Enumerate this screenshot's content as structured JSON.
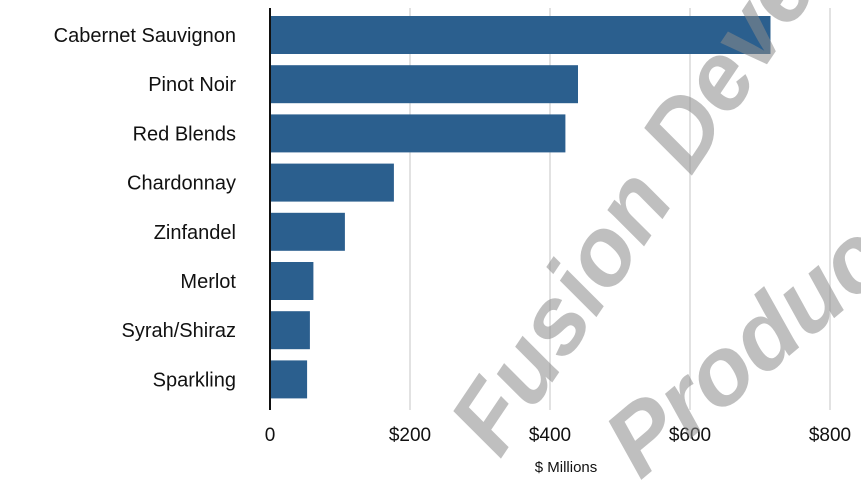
{
  "chart_data": {
    "type": "bar",
    "orientation": "horizontal",
    "categories": [
      "Cabernet Sauvignon",
      "Pinot Noir",
      "Red Blends",
      "Chardonnay",
      "Zinfandel",
      "Merlot",
      "Syrah/Shiraz",
      "Sparkling"
    ],
    "values": [
      715,
      440,
      422,
      177,
      107,
      62,
      57,
      53
    ],
    "xlabel": "$ Millions",
    "ylabel": "",
    "xlim": [
      0,
      830
    ],
    "xticks": [
      0,
      200,
      400,
      600,
      800
    ],
    "xtick_labels": [
      "0",
      "$200",
      "$400",
      "$600",
      "$800"
    ],
    "grid": "vertical",
    "bar_color": "#2b5f8e",
    "axis_color": "#111111",
    "grid_color": "#d9d9d9"
  },
  "watermark": {
    "lines": [
      "Fusion Deve",
      "Product"
    ],
    "color": "#8a8a8a"
  }
}
